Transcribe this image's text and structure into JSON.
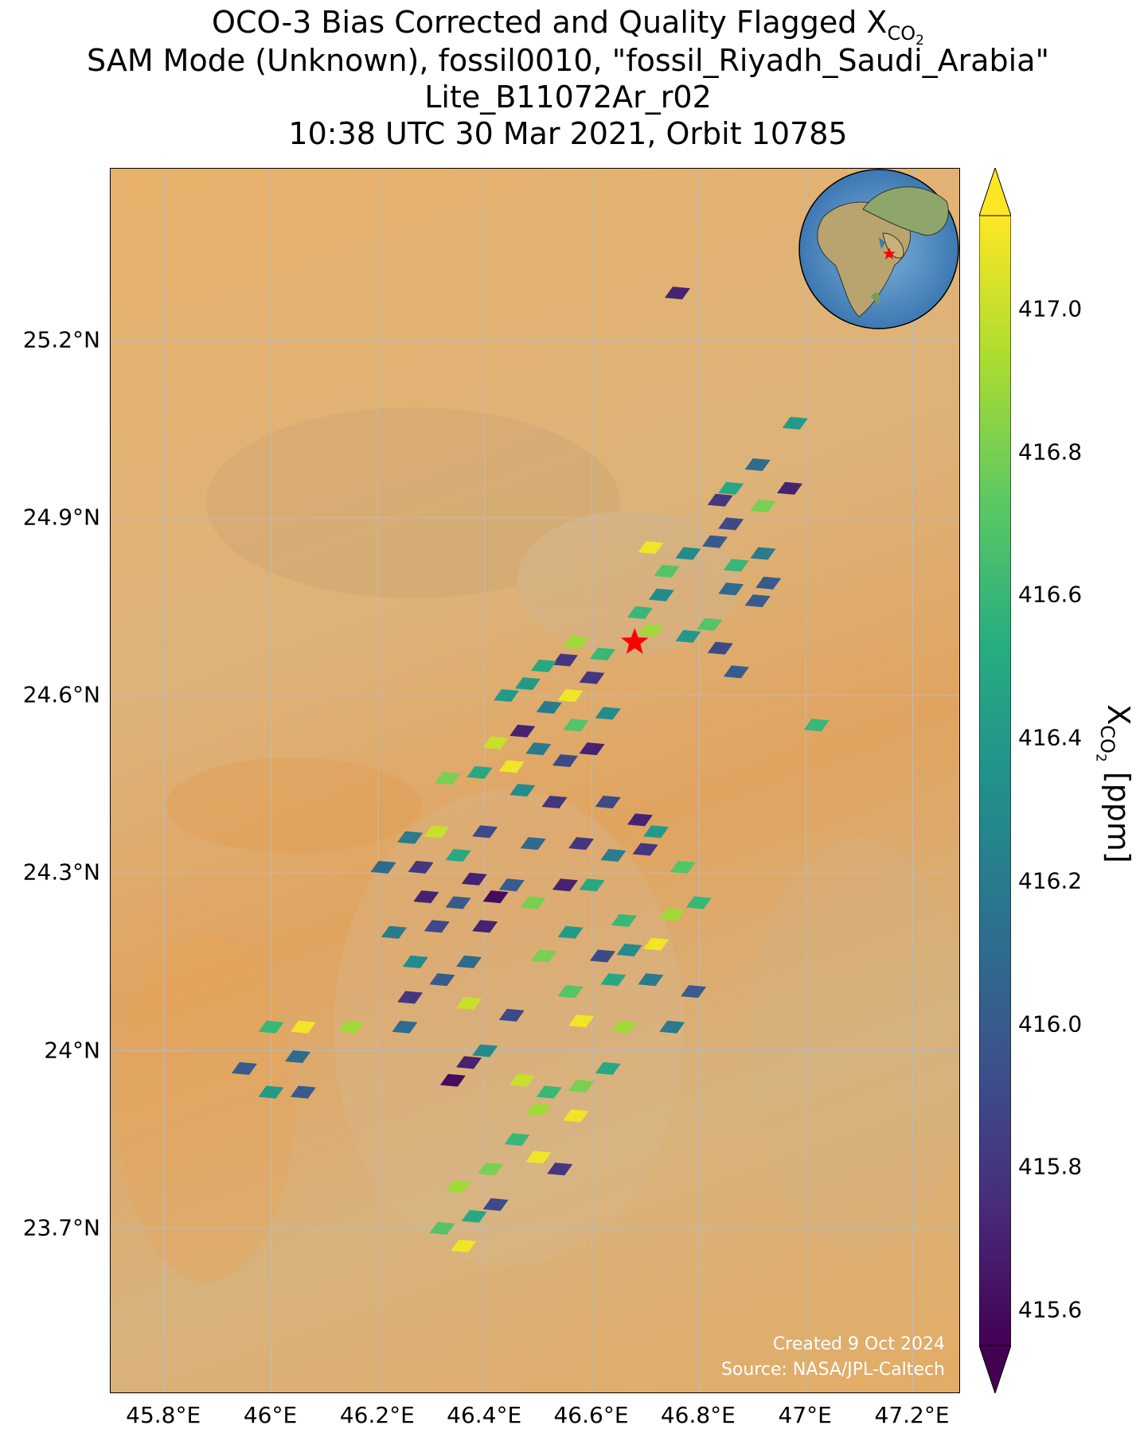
{
  "title": {
    "line1_prefix": "OCO-3 Bias Corrected and Quality Flagged X",
    "line1_sub": "CO",
    "line1_sub2": "2",
    "line2": "SAM Mode (Unknown), fossil0010, \"fossil_Riyadh_Saudi_Arabia\"",
    "line3": "Lite_B11072Ar_r02",
    "line4": "10:38 UTC 30 Mar 2021, Orbit 10785"
  },
  "map": {
    "lon_range": [
      45.7,
      47.29
    ],
    "lat_range": [
      23.42,
      25.49
    ],
    "lon_ticks": [
      "45.8°E",
      "46°E",
      "46.2°E",
      "46.4°E",
      "46.6°E",
      "46.8°E",
      "47°E",
      "47.2°E"
    ],
    "lon_values": [
      45.8,
      46.0,
      46.2,
      46.4,
      46.6,
      46.8,
      47.0,
      47.2
    ],
    "lat_ticks": [
      "25.2°N",
      "24.9°N",
      "24.6°N",
      "24.3°N",
      "24°N",
      "23.7°N"
    ],
    "lat_values": [
      25.2,
      24.9,
      24.6,
      24.3,
      24.0,
      23.7
    ],
    "grid": true,
    "target_marker": {
      "lon": 46.68,
      "lat": 24.69,
      "symbol": "red-star"
    },
    "credit_line1": "Created 9 Oct 2024",
    "credit_line2": "Source: NASA/JPL-Caltech",
    "inset_globe": "globe-icon-africa-arabia"
  },
  "colorbar": {
    "label_prefix": "X",
    "label_sub": "CO",
    "label_sub2": "2",
    "label_suffix": " [ppm]",
    "range": [
      415.55,
      417.13
    ],
    "ticks": [
      "417.0",
      "416.8",
      "416.6",
      "416.4",
      "416.2",
      "416.0",
      "415.8",
      "415.6"
    ],
    "tick_values": [
      417.0,
      416.8,
      416.6,
      416.4,
      416.2,
      416.0,
      415.8,
      415.6
    ],
    "colormap": "viridis",
    "extend": "both"
  },
  "chart_data": {
    "type": "scatter",
    "xlabel": "",
    "ylabel": "",
    "xlim": [
      45.7,
      47.29
    ],
    "ylim": [
      23.42,
      25.49
    ],
    "units": "ppm",
    "points": [
      {
        "lon": 46.76,
        "lat": 25.28,
        "v": 415.7
      },
      {
        "lon": 46.98,
        "lat": 25.06,
        "v": 416.4
      },
      {
        "lon": 46.91,
        "lat": 24.99,
        "v": 416.1
      },
      {
        "lon": 46.86,
        "lat": 24.95,
        "v": 416.5
      },
      {
        "lon": 46.97,
        "lat": 24.95,
        "v": 415.7
      },
      {
        "lon": 46.92,
        "lat": 24.92,
        "v": 416.8
      },
      {
        "lon": 46.84,
        "lat": 24.93,
        "v": 415.8
      },
      {
        "lon": 46.86,
        "lat": 24.89,
        "v": 415.9
      },
      {
        "lon": 46.83,
        "lat": 24.86,
        "v": 416.0
      },
      {
        "lon": 46.78,
        "lat": 24.84,
        "v": 416.3
      },
      {
        "lon": 46.92,
        "lat": 24.84,
        "v": 416.2
      },
      {
        "lon": 46.71,
        "lat": 24.85,
        "v": 417.1
      },
      {
        "lon": 46.87,
        "lat": 24.82,
        "v": 416.6
      },
      {
        "lon": 46.74,
        "lat": 24.81,
        "v": 416.7
      },
      {
        "lon": 46.93,
        "lat": 24.79,
        "v": 416.0
      },
      {
        "lon": 46.86,
        "lat": 24.78,
        "v": 416.1
      },
      {
        "lon": 46.91,
        "lat": 24.76,
        "v": 416.0
      },
      {
        "lon": 46.73,
        "lat": 24.77,
        "v": 416.3
      },
      {
        "lon": 46.69,
        "lat": 24.74,
        "v": 416.6
      },
      {
        "lon": 46.82,
        "lat": 24.72,
        "v": 416.7
      },
      {
        "lon": 46.71,
        "lat": 24.71,
        "v": 416.9
      },
      {
        "lon": 46.78,
        "lat": 24.7,
        "v": 416.4
      },
      {
        "lon": 46.84,
        "lat": 24.68,
        "v": 415.9
      },
      {
        "lon": 46.87,
        "lat": 24.64,
        "v": 416.0
      },
      {
        "lon": 46.62,
        "lat": 24.67,
        "v": 416.6
      },
      {
        "lon": 46.57,
        "lat": 24.69,
        "v": 416.9
      },
      {
        "lon": 46.55,
        "lat": 24.66,
        "v": 415.8
      },
      {
        "lon": 46.51,
        "lat": 24.65,
        "v": 416.5
      },
      {
        "lon": 46.48,
        "lat": 24.62,
        "v": 416.4
      },
      {
        "lon": 46.6,
        "lat": 24.63,
        "v": 415.8
      },
      {
        "lon": 46.56,
        "lat": 24.6,
        "v": 417.1
      },
      {
        "lon": 46.52,
        "lat": 24.58,
        "v": 416.2
      },
      {
        "lon": 46.44,
        "lat": 24.6,
        "v": 416.4
      },
      {
        "lon": 46.63,
        "lat": 24.57,
        "v": 416.3
      },
      {
        "lon": 46.57,
        "lat": 24.55,
        "v": 416.7
      },
      {
        "lon": 46.47,
        "lat": 24.54,
        "v": 415.7
      },
      {
        "lon": 46.42,
        "lat": 24.52,
        "v": 417.0
      },
      {
        "lon": 46.5,
        "lat": 24.51,
        "v": 416.2
      },
      {
        "lon": 46.6,
        "lat": 24.51,
        "v": 415.7
      },
      {
        "lon": 46.55,
        "lat": 24.49,
        "v": 415.9
      },
      {
        "lon": 46.45,
        "lat": 24.48,
        "v": 417.1
      },
      {
        "lon": 46.39,
        "lat": 24.47,
        "v": 416.5
      },
      {
        "lon": 46.33,
        "lat": 24.46,
        "v": 416.8
      },
      {
        "lon": 46.47,
        "lat": 24.44,
        "v": 416.3
      },
      {
        "lon": 46.53,
        "lat": 24.42,
        "v": 415.8
      },
      {
        "lon": 46.63,
        "lat": 24.42,
        "v": 415.9
      },
      {
        "lon": 46.69,
        "lat": 24.39,
        "v": 415.7
      },
      {
        "lon": 46.72,
        "lat": 24.37,
        "v": 416.4
      },
      {
        "lon": 46.58,
        "lat": 24.35,
        "v": 415.8
      },
      {
        "lon": 46.49,
        "lat": 24.35,
        "v": 416.1
      },
      {
        "lon": 46.4,
        "lat": 24.37,
        "v": 415.9
      },
      {
        "lon": 46.31,
        "lat": 24.37,
        "v": 417.0
      },
      {
        "lon": 46.26,
        "lat": 24.36,
        "v": 416.2
      },
      {
        "lon": 46.35,
        "lat": 24.33,
        "v": 416.5
      },
      {
        "lon": 46.28,
        "lat": 24.31,
        "v": 415.8
      },
      {
        "lon": 46.21,
        "lat": 24.31,
        "v": 416.1
      },
      {
        "lon": 46.38,
        "lat": 24.29,
        "v": 415.7
      },
      {
        "lon": 46.45,
        "lat": 24.28,
        "v": 416.0
      },
      {
        "lon": 46.64,
        "lat": 24.33,
        "v": 416.2
      },
      {
        "lon": 46.7,
        "lat": 24.34,
        "v": 415.8
      },
      {
        "lon": 46.77,
        "lat": 24.31,
        "v": 416.7
      },
      {
        "lon": 46.6,
        "lat": 24.28,
        "v": 416.5
      },
      {
        "lon": 46.55,
        "lat": 24.28,
        "v": 415.7
      },
      {
        "lon": 46.49,
        "lat": 24.25,
        "v": 416.8
      },
      {
        "lon": 46.42,
        "lat": 24.26,
        "v": 415.6
      },
      {
        "lon": 46.35,
        "lat": 24.25,
        "v": 416.0
      },
      {
        "lon": 46.29,
        "lat": 24.26,
        "v": 415.7
      },
      {
        "lon": 46.31,
        "lat": 24.21,
        "v": 415.9
      },
      {
        "lon": 46.23,
        "lat": 24.2,
        "v": 416.2
      },
      {
        "lon": 46.4,
        "lat": 24.21,
        "v": 415.7
      },
      {
        "lon": 46.56,
        "lat": 24.2,
        "v": 416.4
      },
      {
        "lon": 46.66,
        "lat": 24.22,
        "v": 416.6
      },
      {
        "lon": 46.75,
        "lat": 24.23,
        "v": 416.9
      },
      {
        "lon": 46.8,
        "lat": 24.25,
        "v": 416.6
      },
      {
        "lon": 46.72,
        "lat": 24.18,
        "v": 417.1
      },
      {
        "lon": 46.67,
        "lat": 24.17,
        "v": 416.3
      },
      {
        "lon": 46.62,
        "lat": 24.16,
        "v": 415.9
      },
      {
        "lon": 46.51,
        "lat": 24.16,
        "v": 416.8
      },
      {
        "lon": 46.37,
        "lat": 24.15,
        "v": 416.1
      },
      {
        "lon": 46.27,
        "lat": 24.15,
        "v": 416.3
      },
      {
        "lon": 46.32,
        "lat": 24.12,
        "v": 416.0
      },
      {
        "lon": 46.26,
        "lat": 24.09,
        "v": 415.8
      },
      {
        "lon": 46.37,
        "lat": 24.08,
        "v": 417.0
      },
      {
        "lon": 46.45,
        "lat": 24.06,
        "v": 415.9
      },
      {
        "lon": 46.56,
        "lat": 24.1,
        "v": 416.7
      },
      {
        "lon": 46.64,
        "lat": 24.12,
        "v": 416.5
      },
      {
        "lon": 46.71,
        "lat": 24.12,
        "v": 416.2
      },
      {
        "lon": 46.79,
        "lat": 24.1,
        "v": 416.0
      },
      {
        "lon": 46.58,
        "lat": 24.05,
        "v": 417.1
      },
      {
        "lon": 46.66,
        "lat": 24.04,
        "v": 416.9
      },
      {
        "lon": 46.75,
        "lat": 24.04,
        "v": 416.2
      },
      {
        "lon": 46.25,
        "lat": 24.04,
        "v": 416.1
      },
      {
        "lon": 46.15,
        "lat": 24.04,
        "v": 416.9
      },
      {
        "lon": 46.06,
        "lat": 24.04,
        "v": 417.1
      },
      {
        "lon": 46.0,
        "lat": 24.04,
        "v": 416.6
      },
      {
        "lon": 46.05,
        "lat": 23.99,
        "v": 416.1
      },
      {
        "lon": 45.95,
        "lat": 23.97,
        "v": 416.0
      },
      {
        "lon": 46.0,
        "lat": 23.93,
        "v": 416.4
      },
      {
        "lon": 46.06,
        "lat": 23.93,
        "v": 416.0
      },
      {
        "lon": 46.4,
        "lat": 24.0,
        "v": 416.3
      },
      {
        "lon": 46.37,
        "lat": 23.98,
        "v": 415.7
      },
      {
        "lon": 46.34,
        "lat": 23.95,
        "v": 415.6
      },
      {
        "lon": 46.47,
        "lat": 23.95,
        "v": 417.0
      },
      {
        "lon": 46.52,
        "lat": 23.93,
        "v": 416.6
      },
      {
        "lon": 46.5,
        "lat": 23.9,
        "v": 416.9
      },
      {
        "lon": 46.58,
        "lat": 23.94,
        "v": 416.8
      },
      {
        "lon": 46.63,
        "lat": 23.97,
        "v": 416.5
      },
      {
        "lon": 46.57,
        "lat": 23.89,
        "v": 417.1
      },
      {
        "lon": 46.46,
        "lat": 23.85,
        "v": 416.6
      },
      {
        "lon": 46.5,
        "lat": 23.82,
        "v": 417.1
      },
      {
        "lon": 46.54,
        "lat": 23.8,
        "v": 415.8
      },
      {
        "lon": 46.41,
        "lat": 23.8,
        "v": 416.8
      },
      {
        "lon": 46.35,
        "lat": 23.77,
        "v": 416.9
      },
      {
        "lon": 46.38,
        "lat": 23.72,
        "v": 416.5
      },
      {
        "lon": 46.42,
        "lat": 23.74,
        "v": 415.9
      },
      {
        "lon": 46.36,
        "lat": 23.67,
        "v": 417.1
      },
      {
        "lon": 46.32,
        "lat": 23.7,
        "v": 416.7
      },
      {
        "lon": 47.02,
        "lat": 24.55,
        "v": 416.6
      }
    ]
  }
}
